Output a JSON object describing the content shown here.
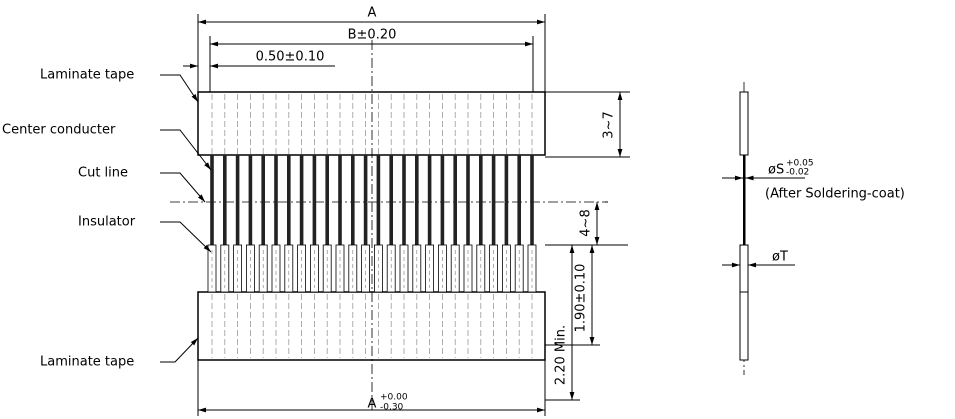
{
  "labels": [
    "Laminate tape",
    "Center conducter",
    "Cut line",
    "Insulator",
    "Laminate tape"
  ],
  "dimensions": {
    "overall_width": "A",
    "pitch_span": "B±0.20",
    "pitch": "0.50±0.10",
    "tape_length": "3~7",
    "exposed_length": "4~8",
    "insulator_length": "1.90±0.10",
    "min_length": "2.20 Min.",
    "bottom_width": {
      "label": "A",
      "upper": "+0.00",
      "lower": "-0.30"
    }
  },
  "side_view": {
    "conductor": {
      "label": "øS",
      "upper": "+0.05",
      "lower": "-0.02"
    },
    "note": "(After Soldering-coat)",
    "thickness": "øT"
  }
}
